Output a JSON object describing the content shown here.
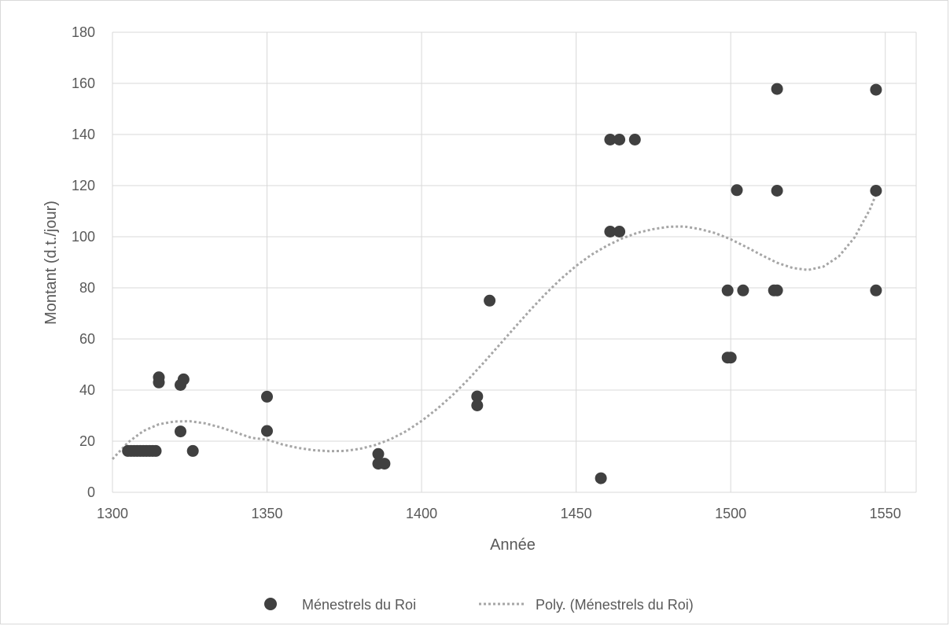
{
  "chart_data": {
    "type": "scatter",
    "title": "",
    "xlabel": "Année",
    "ylabel": "Montant (d.t./jour)",
    "xlim": [
      1300,
      1560
    ],
    "ylim": [
      0,
      180
    ],
    "xticks": [
      1300,
      1350,
      1400,
      1450,
      1500,
      1550
    ],
    "yticks": [
      0,
      20,
      40,
      60,
      80,
      100,
      120,
      140,
      160,
      180
    ],
    "grid": true,
    "legend_position": "bottom",
    "series": [
      {
        "name": "Ménestrels du Roi",
        "kind": "scatter",
        "color": "#404040",
        "points": [
          [
            1305,
            16.2
          ],
          [
            1306,
            16.2
          ],
          [
            1307,
            16.2
          ],
          [
            1308,
            16.2
          ],
          [
            1309,
            16.2
          ],
          [
            1310,
            16.2
          ],
          [
            1311,
            16.2
          ],
          [
            1312,
            16.2
          ],
          [
            1313,
            16.2
          ],
          [
            1314,
            16.2
          ],
          [
            1315,
            45
          ],
          [
            1315,
            43
          ],
          [
            1322,
            42
          ],
          [
            1323,
            44.2
          ],
          [
            1322,
            23.8
          ],
          [
            1326,
            16.2
          ],
          [
            1350,
            37.4
          ],
          [
            1350,
            24
          ],
          [
            1386,
            15
          ],
          [
            1386,
            11.2
          ],
          [
            1388,
            11.2
          ],
          [
            1418,
            37.5
          ],
          [
            1418,
            34
          ],
          [
            1422,
            75
          ],
          [
            1458,
            5.5
          ],
          [
            1461,
            138
          ],
          [
            1464,
            138
          ],
          [
            1469,
            138
          ],
          [
            1461,
            102
          ],
          [
            1464,
            102
          ],
          [
            1499,
            79
          ],
          [
            1504,
            79
          ],
          [
            1514,
            79
          ],
          [
            1515,
            79
          ],
          [
            1499,
            52.7
          ],
          [
            1500,
            52.7
          ],
          [
            1502,
            118.2
          ],
          [
            1515,
            118
          ],
          [
            1515,
            157.8
          ],
          [
            1547,
            157.5
          ],
          [
            1547,
            118
          ],
          [
            1547,
            79
          ]
        ]
      },
      {
        "name": "Poly. (Ménestrels du Roi)",
        "kind": "trendline",
        "color": "#a6a6a6",
        "points": [
          [
            1300,
            13
          ],
          [
            1305,
            19.5
          ],
          [
            1310,
            24
          ],
          [
            1315,
            26.6
          ],
          [
            1320,
            27.7
          ],
          [
            1325,
            27.8
          ],
          [
            1330,
            27
          ],
          [
            1335,
            25.4
          ],
          [
            1340,
            23.4
          ],
          [
            1345,
            21.3
          ],
          [
            1350,
            20.6
          ],
          [
            1355,
            18.7
          ],
          [
            1360,
            17.4
          ],
          [
            1365,
            16.5
          ],
          [
            1370,
            16.1
          ],
          [
            1375,
            16.2
          ],
          [
            1380,
            17
          ],
          [
            1385,
            18.5
          ],
          [
            1390,
            20.8
          ],
          [
            1395,
            23.9
          ],
          [
            1400,
            27.9
          ],
          [
            1405,
            32.6
          ],
          [
            1410,
            38
          ],
          [
            1415,
            44
          ],
          [
            1420,
            50.6
          ],
          [
            1425,
            57.4
          ],
          [
            1430,
            64.3
          ],
          [
            1435,
            71.1
          ],
          [
            1440,
            77.5
          ],
          [
            1445,
            83.4
          ],
          [
            1450,
            88.6
          ],
          [
            1455,
            93
          ],
          [
            1460,
            96.5
          ],
          [
            1465,
            99.4
          ],
          [
            1470,
            101.6
          ],
          [
            1475,
            103
          ],
          [
            1480,
            103.9
          ],
          [
            1485,
            104
          ],
          [
            1490,
            103
          ],
          [
            1495,
            101.4
          ],
          [
            1500,
            99
          ],
          [
            1505,
            96
          ],
          [
            1510,
            92.8
          ],
          [
            1515,
            89.8
          ],
          [
            1520,
            87.8
          ],
          [
            1525,
            87
          ],
          [
            1530,
            88.3
          ],
          [
            1535,
            92.3
          ],
          [
            1540,
            99.6
          ],
          [
            1545,
            110.6
          ],
          [
            1548,
            119.5
          ]
        ]
      }
    ]
  }
}
